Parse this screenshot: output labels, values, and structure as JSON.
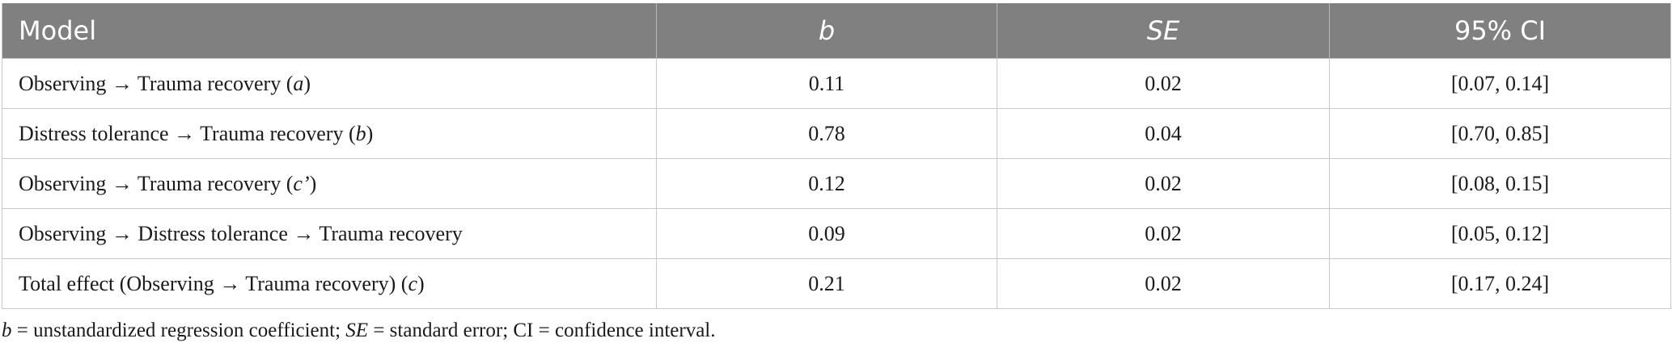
{
  "table": {
    "headers": {
      "model": "Model",
      "b": "b",
      "se": "SE",
      "ci": "95% CI"
    },
    "rows": [
      {
        "model_text": "Observing → Trauma recovery (",
        "model_path": "a",
        "model_suffix": ")",
        "b": "0.11",
        "se": "0.02",
        "ci": "[0.07, 0.14]"
      },
      {
        "model_text": "Distress tolerance → Trauma recovery (",
        "model_path": "b",
        "model_suffix": ")",
        "b": "0.78",
        "se": "0.04",
        "ci": "[0.70, 0.85]"
      },
      {
        "model_text": "Observing → Trauma recovery (",
        "model_path": "c’",
        "model_suffix": ")",
        "b": "0.12",
        "se": "0.02",
        "ci": "[0.08, 0.15]"
      },
      {
        "model_text": "Observing → Distress tolerance → Trauma recovery",
        "model_path": "",
        "model_suffix": "",
        "b": "0.09",
        "se": "0.02",
        "ci": "[0.05, 0.12]"
      },
      {
        "model_text": "Total effect (Observing → Trauma recovery) (",
        "model_path": "c",
        "model_suffix": ")",
        "b": "0.21",
        "se": "0.02",
        "ci": "[0.17, 0.24]"
      }
    ]
  },
  "footnote": {
    "b_symbol": "b",
    "b_def": " = unstandardized regression coefficient; ",
    "se_symbol": "SE",
    "se_def": " = standard error; CI = confidence interval."
  }
}
